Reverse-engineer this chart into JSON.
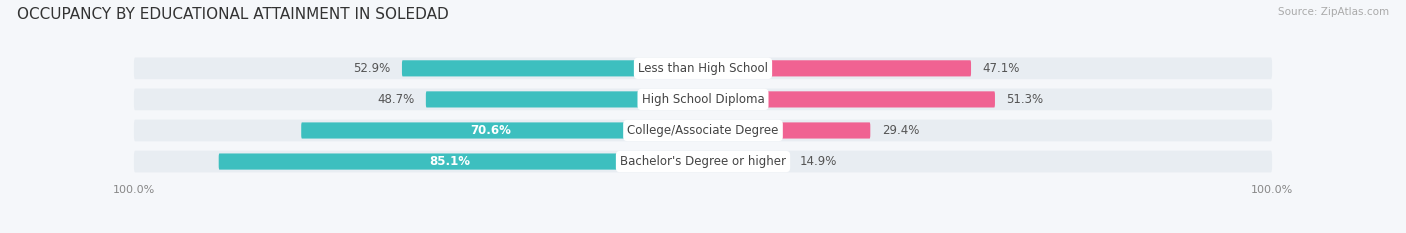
{
  "title": "OCCUPANCY BY EDUCATIONAL ATTAINMENT IN SOLEDAD",
  "source": "Source: ZipAtlas.com",
  "categories": [
    "Less than High School",
    "High School Diploma",
    "College/Associate Degree",
    "Bachelor's Degree or higher"
  ],
  "owner_pct": [
    52.9,
    48.7,
    70.6,
    85.1
  ],
  "renter_pct": [
    47.1,
    51.3,
    29.4,
    14.9
  ],
  "owner_color": "#3dbfbf",
  "renter_color": "#f06292",
  "renter_color_light": "#f9a8c9",
  "bar_height": 0.52,
  "bg_strip_color": "#e8edf2",
  "background_color": "#f5f7fa",
  "title_fontsize": 11,
  "label_fontsize": 8.5,
  "pct_fontsize": 8.5,
  "axis_label_fontsize": 8,
  "legend_fontsize": 9,
  "owner_pct_label_color_inside": "#ffffff",
  "owner_pct_label_color_outside": "#555555",
  "inside_threshold": 60
}
